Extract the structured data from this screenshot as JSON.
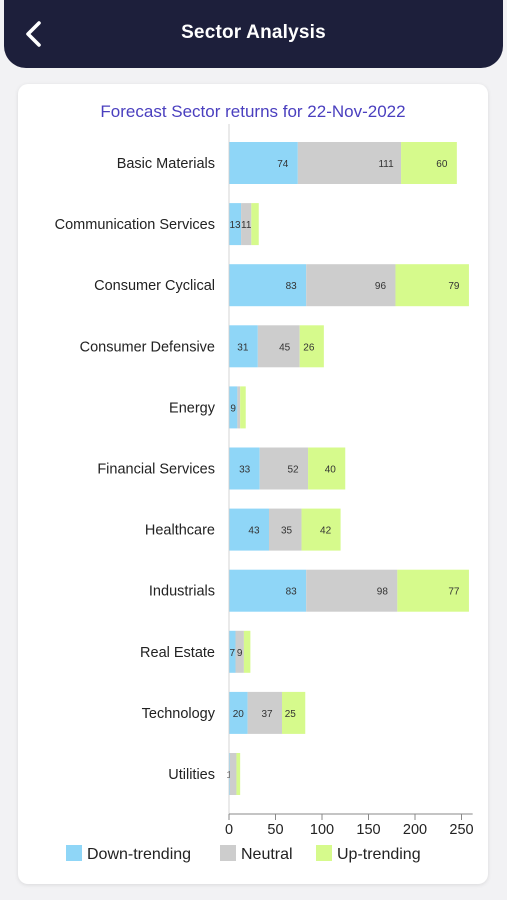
{
  "header": {
    "title": "Sector Analysis",
    "back_icon": "chevron-left-icon"
  },
  "colors": {
    "header_bg": "#1d1f3b",
    "down": "#8fd6f7",
    "neutral": "#cdcdcd",
    "up": "#d6fa8c",
    "title": "#4a3fbf"
  },
  "chart_data": {
    "type": "bar",
    "orientation": "horizontal",
    "stacked": true,
    "title": "Forecast Sector returns for 22-Nov-2022",
    "categories": [
      "Basic Materials",
      "Communication Services",
      "Consumer Cyclical",
      "Consumer Defensive",
      "Energy",
      "Financial Services",
      "Healthcare",
      "Industrials",
      "Real Estate",
      "Technology",
      "Utilities"
    ],
    "series": [
      {
        "name": "Down-trending",
        "color": "#8fd6f7",
        "values": [
          74,
          13,
          83,
          31,
          9,
          33,
          43,
          83,
          7,
          20,
          1
        ]
      },
      {
        "name": "Neutral",
        "color": "#cdcdcd",
        "values": [
          111,
          11,
          96,
          45,
          3,
          52,
          35,
          98,
          9,
          37,
          7
        ]
      },
      {
        "name": "Up-trending",
        "color": "#d6fa8c",
        "values": [
          60,
          8,
          79,
          26,
          6,
          40,
          42,
          77,
          7,
          25,
          4
        ]
      }
    ],
    "bar_labels_shown": [
      [
        "74",
        "111",
        "60"
      ],
      [
        "13",
        "11",
        ""
      ],
      [
        "83",
        "96",
        "79"
      ],
      [
        "31",
        "45",
        "26"
      ],
      [
        "9",
        "",
        ""
      ],
      [
        "33",
        "52",
        "40"
      ],
      [
        "43",
        "35",
        "42"
      ],
      [
        "83",
        "98",
        "77"
      ],
      [
        "7",
        "9",
        ""
      ],
      [
        "20",
        "37",
        "25"
      ],
      [
        "1",
        "",
        ""
      ]
    ],
    "xticks": [
      0,
      50,
      100,
      150,
      200,
      250
    ],
    "xlim": [
      0,
      262
    ],
    "grid": false,
    "legend_position": "bottom"
  }
}
